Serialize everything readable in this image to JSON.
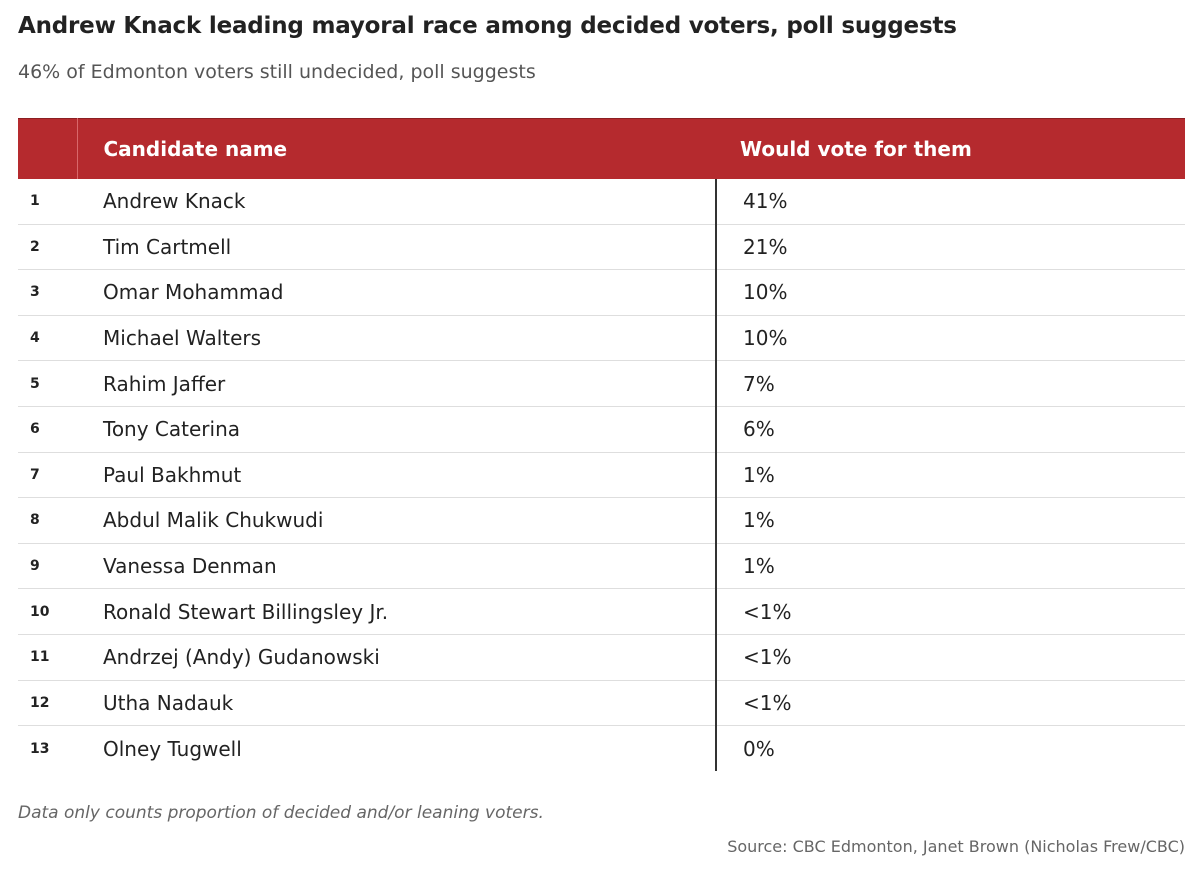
{
  "chart_data": {
    "type": "table",
    "title": "Andrew Knack leading mayoral race among decided voters, poll suggests",
    "subtitle": "46% of Edmonton voters still undecided, poll suggests",
    "columns": [
      "",
      "Candidate name",
      "Would vote for them"
    ],
    "rows": [
      {
        "rank": "1",
        "name": "Andrew Knack",
        "vote": "41%"
      },
      {
        "rank": "2",
        "name": "Tim Cartmell",
        "vote": "21%"
      },
      {
        "rank": "3",
        "name": "Omar Mohammad",
        "vote": "10%"
      },
      {
        "rank": "4",
        "name": "Michael Walters",
        "vote": "10%"
      },
      {
        "rank": "5",
        "name": "Rahim Jaffer",
        "vote": "7%"
      },
      {
        "rank": "6",
        "name": "Tony Caterina",
        "vote": "6%"
      },
      {
        "rank": "7",
        "name": "Paul Bakhmut",
        "vote": "1%"
      },
      {
        "rank": "8",
        "name": "Abdul Malik Chukwudi",
        "vote": "1%"
      },
      {
        "rank": "9",
        "name": "Vanessa Denman",
        "vote": "1%"
      },
      {
        "rank": "10",
        "name": "Ronald Stewart Billingsley Jr.",
        "vote": "<1%"
      },
      {
        "rank": "11",
        "name": "Andrzej (Andy) Gudanowski",
        "vote": "<1%"
      },
      {
        "rank": "12",
        "name": "Utha Nadauk",
        "vote": "<1%"
      },
      {
        "rank": "13",
        "name": "Olney Tugwell",
        "vote": "0%"
      }
    ],
    "note": "Data only counts proportion of decided and/or leaning voters.",
    "source": "Source: CBC Edmonton, Janet Brown (Nicholas Frew/CBC)",
    "colors": {
      "header_background": "#b52a2e",
      "header_text": "#ffffff"
    }
  }
}
